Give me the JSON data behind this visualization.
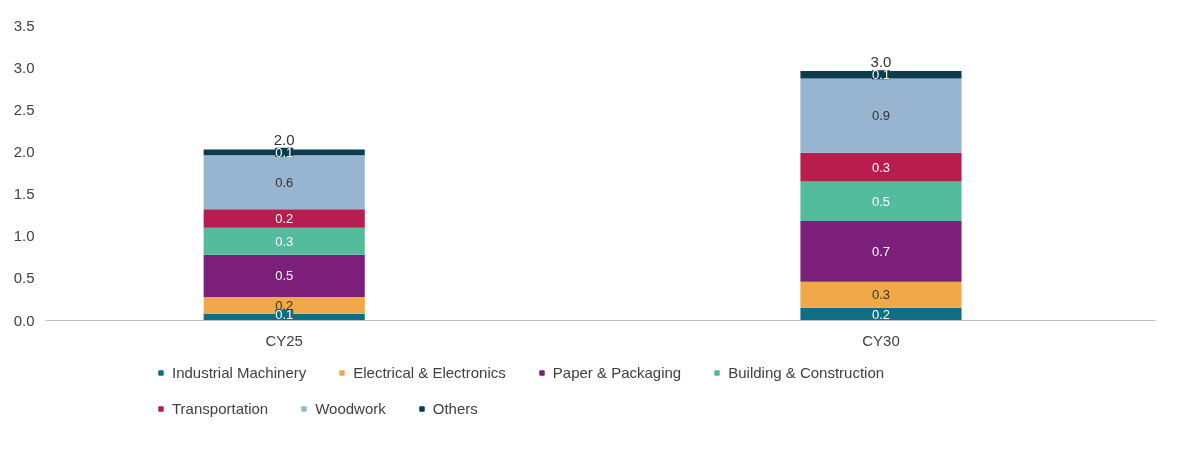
{
  "chart_data": {
    "type": "bar",
    "stacked": true,
    "categories": [
      "CY25",
      "CY30"
    ],
    "ylim": [
      0,
      3.5
    ],
    "yticks": [
      {
        "value": 0,
        "label": "0.0"
      },
      {
        "value": 0.5,
        "label": "0.5"
      },
      {
        "value": 1,
        "label": "1.0"
      },
      {
        "value": 1.5,
        "label": "1.5"
      },
      {
        "value": 2,
        "label": "2.0"
      },
      {
        "value": 2.5,
        "label": "2.5"
      },
      {
        "value": 3,
        "label": "3.0"
      },
      {
        "value": 3.5,
        "label": "3.5"
      }
    ],
    "grid": false,
    "legend": "bottom",
    "series": [
      {
        "name": "Industrial Machinery",
        "color": "#0e6e84",
        "values": [
          0.08,
          0.15
        ],
        "value_labels": [
          "0.1",
          "0.2"
        ]
      },
      {
        "name": "Electrical & Electronics",
        "color": "#f0a848",
        "values": [
          0.2,
          0.31
        ],
        "value_labels": [
          "0.2",
          "0.3"
        ]
      },
      {
        "name": "Paper & Packaging",
        "color": "#7b1f7a",
        "values": [
          0.5,
          0.72
        ],
        "value_labels": [
          "0.5",
          "0.7"
        ]
      },
      {
        "name": "Building & Construction",
        "color": "#52bc9c",
        "values": [
          0.32,
          0.47
        ],
        "value_labels": [
          "0.3",
          "0.5"
        ]
      },
      {
        "name": "Transportation",
        "color": "#b81d4f",
        "values": [
          0.22,
          0.34
        ],
        "value_labels": [
          "0.2",
          "0.3"
        ]
      },
      {
        "name": "Woodwork",
        "color": "#97b4d0",
        "values": [
          0.64,
          0.88
        ],
        "value_labels": [
          "0.6",
          "0.9"
        ]
      },
      {
        "name": "Others",
        "color": "#0d3c4f",
        "values": [
          0.07,
          0.09
        ],
        "value_labels": [
          "0.1",
          "0.1"
        ]
      }
    ],
    "totals": [
      "2.0",
      "3.0"
    ]
  }
}
